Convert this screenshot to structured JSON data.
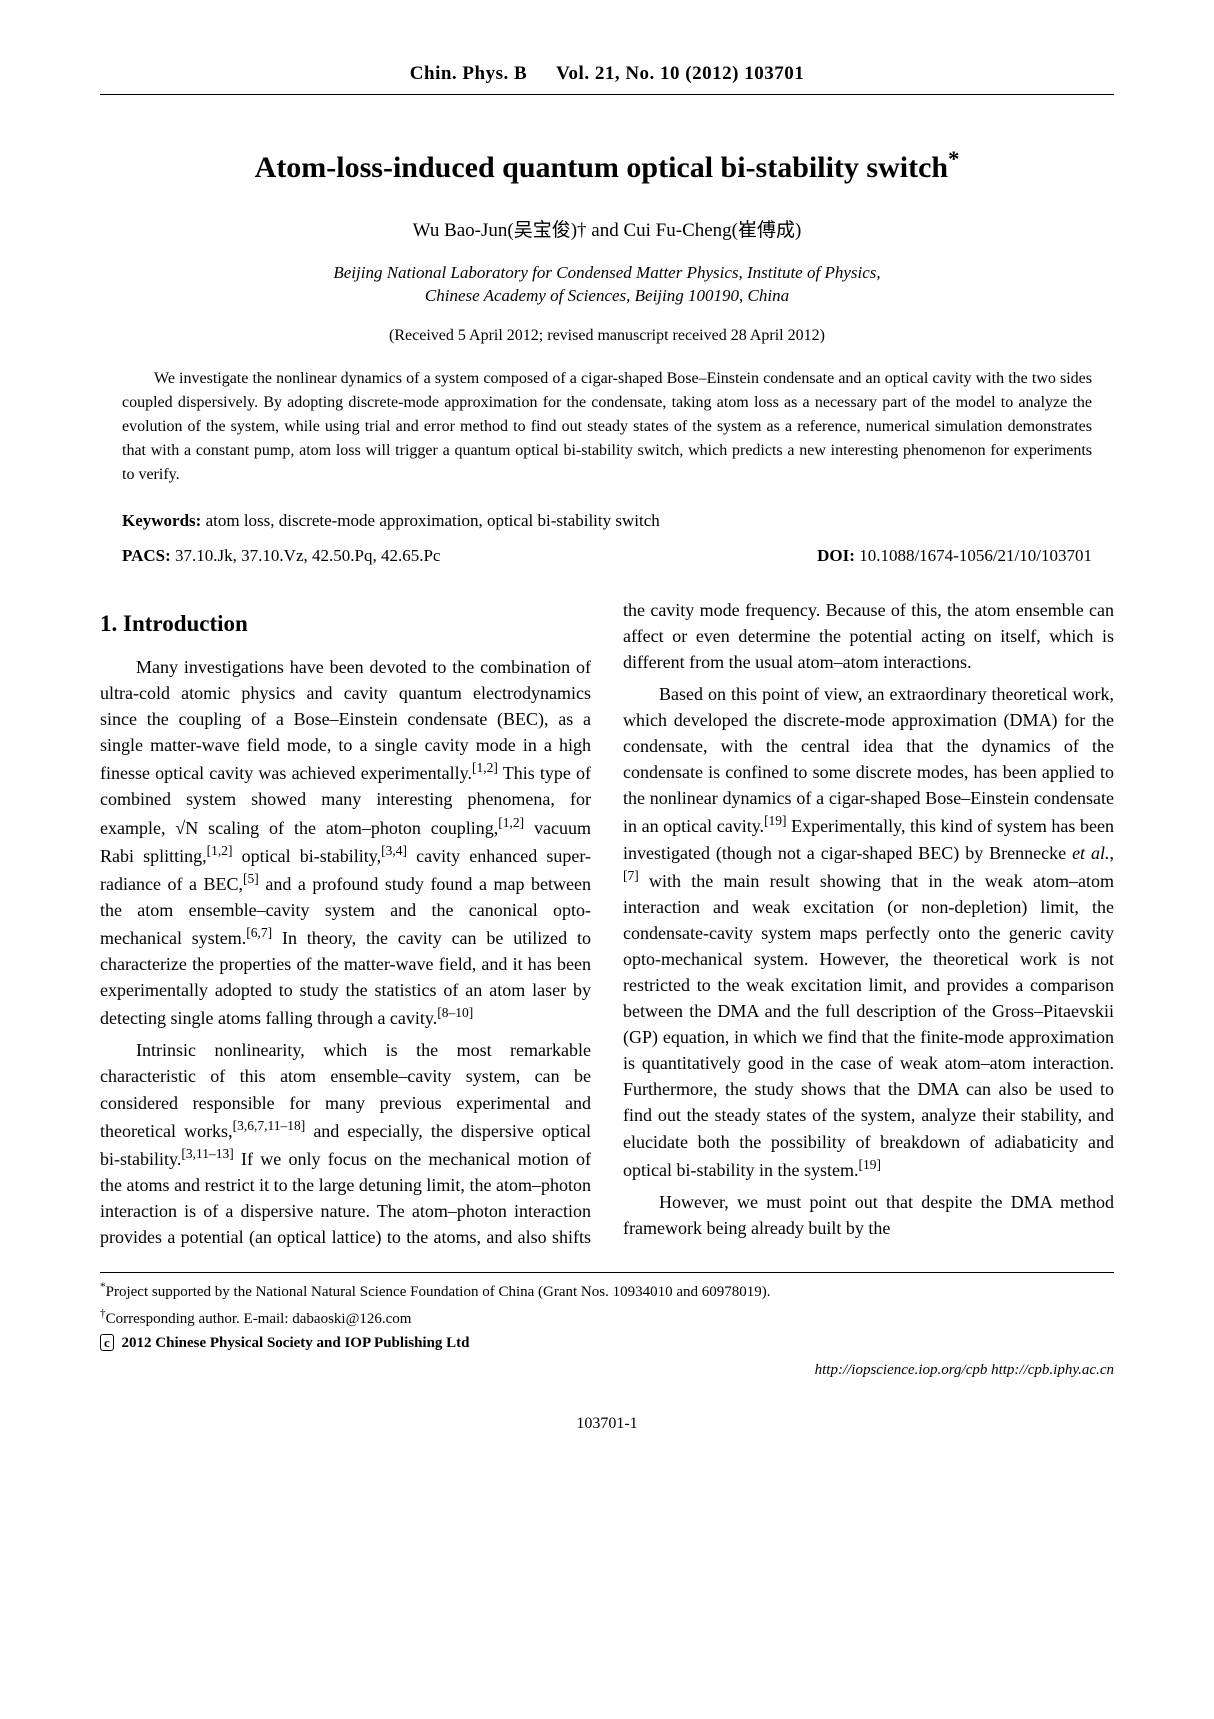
{
  "header": {
    "journal": "Chin. Phys. B",
    "issue": "Vol. 21, No. 10 (2012)  103701"
  },
  "title": "Atom-loss-induced quantum optical bi-stability switch",
  "title_ast": "*",
  "authors": "Wu Bao-Jun(吴宝俊)†  and  Cui Fu-Cheng(崔傅成)",
  "affiliation_l1": "Beijing National Laboratory for Condensed Matter Physics, Institute of Physics,",
  "affiliation_l2": "Chinese Academy of Sciences, Beijing 100190, China",
  "received": "(Received 5 April 2012; revised manuscript received 28 April 2012)",
  "abstract": "We investigate the nonlinear dynamics of a system composed of a cigar-shaped Bose–Einstein condensate and an optical cavity with the two sides coupled dispersively. By adopting discrete-mode approximation for the condensate, taking atom loss as a necessary part of the model to analyze the evolution of the system, while using trial and error method to find out steady states of the system as a reference, numerical simulation demonstrates that with a constant pump, atom loss will trigger a quantum optical bi-stability switch, which predicts a new interesting phenomenon for experiments to verify.",
  "keywords_label": "Keywords:",
  "keywords": " atom loss, discrete-mode approximation, optical bi-stability switch",
  "pacs_label": "PACS:",
  "pacs": " 37.10.Jk, 37.10.Vz, 42.50.Pq, 42.65.Pc",
  "doi_label": "DOI:",
  "doi": " 10.1088/1674-1056/21/10/103701",
  "section1": "1. Introduction",
  "body": {
    "p1a": "Many investigations have been devoted to the combination of ultra-cold atomic physics and cavity quantum electrodynamics since the coupling of a Bose–Einstein condensate (BEC), as a single matter-wave field mode, to a single cavity mode in a high finesse optical cavity was achieved experimentally.",
    "p1_cite1": "[1,2]",
    "p1b": " This type of combined system showed many interesting phenomena, for example, √N scaling of the atom–photon coupling,",
    "p1_cite2": "[1,2]",
    "p1c": " vacuum Rabi splitting,",
    "p1_cite3": "[1,2]",
    "p1d": " optical bi-stability,",
    "p1_cite4": "[3,4]",
    "p1e": " cavity enhanced super-radiance of a BEC,",
    "p1_cite5": "[5]",
    "p1f": " and a profound study found a map between the atom ensemble–cavity system and the canonical opto-mechanical system.",
    "p1_cite6": "[6,7]",
    "p1g": " In theory, the cavity can be utilized to characterize the properties of the matter-wave field, and it has been experimentally adopted to study the statistics of an atom laser by detecting single atoms falling through a cavity.",
    "p1_cite7": "[8–10]",
    "p2a": "Intrinsic nonlinearity, which is the most remarkable characteristic of this atom ensemble–cavity system, can be considered responsible for many previous experimental and theoretical works,",
    "p2_cite1": "[3,6,7,11–18]",
    "p2b": " and especially, the dispersive optical bi-stability.",
    "p2_cite2": "[3,11–13]",
    "p2c": " If we only focus on the mechanical motion of the atoms and restrict it to the large detuning limit, the atom–photon interaction is of a dispersive nature. The atom–photon interaction provides a potential (an optical lattice) to the atoms, and also shifts the cavity mode frequency. Because of this, the atom ensemble can affect or even determine the potential acting on itself, which is different from the usual atom–atom interactions.",
    "p3a": "Based on this point of view, an extraordinary theoretical work, which developed the discrete-mode approximation (DMA) for the condensate, with the central idea that the dynamics of the condensate is confined to some discrete modes, has been applied to the nonlinear dynamics of a cigar-shaped Bose–Einstein condensate in an optical cavity.",
    "p3_cite1": "[19]",
    "p3b": " Experimentally, this kind of system has been investigated (though not a cigar-shaped BEC) by Brennecke ",
    "p3_etal": "et al.",
    "p3b2": ",",
    "p3_cite2": "[7]",
    "p3c": " with the main result showing that in the weak atom–atom interaction and weak excitation (or non-depletion) limit, the condensate-cavity system maps perfectly onto the generic cavity opto-mechanical system. However, the theoretical work is not restricted to the weak excitation limit, and provides a comparison between the DMA and the full description of the Gross–Pitaevskii (GP) equation, in which we find that the finite-mode approximation is quantitatively good in the case of weak atom–atom interaction. Furthermore, the study shows that the DMA can also be used to find out the steady states of the system, analyze their stability, and elucidate both the possibility of breakdown of adiabaticity and optical bi-stability in the system.",
    "p3_cite3": "[19]",
    "p4": "However, we must point out that despite the DMA method framework being already built by the"
  },
  "footnotes": {
    "f1": "Project supported by the National Natural Science Foundation of China (Grant Nos. 10934010 and 60978019).",
    "f2": "Corresponding author. E-mail: dabaoski@126.com",
    "copyright": " 2012  Chinese Physical Society and IOP Publishing Ltd"
  },
  "urls": "http://iopscience.iop.org/cpb    http://cpb.iphy.ac.cn",
  "pagenum": "103701-1"
}
